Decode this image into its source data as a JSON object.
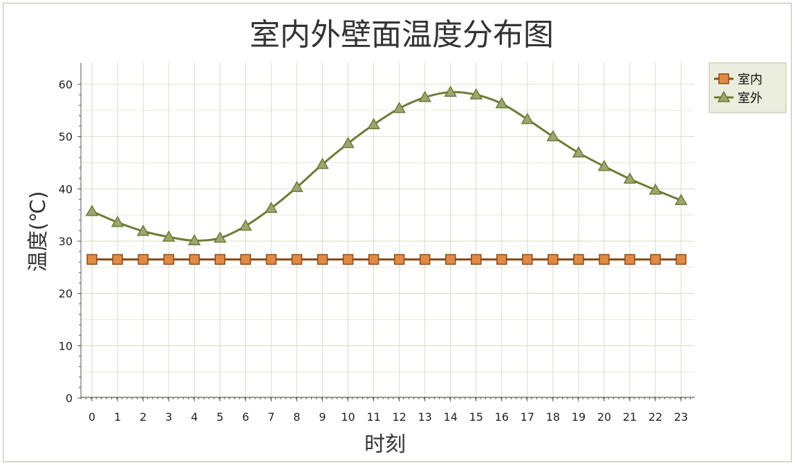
{
  "chart_data": {
    "type": "line",
    "title": "室内外壁面温度分布图",
    "xlabel": "时刻",
    "ylabel": "温度(℃)",
    "categories": [
      "0",
      "1",
      "2",
      "3",
      "4",
      "5",
      "6",
      "7",
      "8",
      "9",
      "10",
      "11",
      "12",
      "13",
      "14",
      "15",
      "16",
      "17",
      "18",
      "19",
      "20",
      "21",
      "22",
      "23"
    ],
    "ylim": [
      0,
      60
    ],
    "yticks": [
      0,
      10,
      20,
      30,
      40,
      50,
      60
    ],
    "grid": true,
    "legend_position": "top-right",
    "series": [
      {
        "name": "室内",
        "marker": "square",
        "color": "#8b4a13",
        "fill": "#e08a45",
        "values": [
          26.5,
          26.5,
          26.5,
          26.5,
          26.5,
          26.5,
          26.5,
          26.5,
          26.5,
          26.5,
          26.5,
          26.5,
          26.5,
          26.5,
          26.5,
          26.5,
          26.5,
          26.5,
          26.5,
          26.5,
          26.5,
          26.5,
          26.5,
          26.5
        ]
      },
      {
        "name": "室外",
        "marker": "triangle",
        "color": "#6b7a35",
        "fill": "#9aa870",
        "values": [
          35.7,
          33.6,
          31.9,
          30.8,
          30.1,
          30.6,
          32.9,
          36.3,
          40.3,
          44.7,
          48.7,
          52.3,
          55.4,
          57.5,
          58.5,
          58.0,
          56.3,
          53.3,
          50.0,
          46.9,
          44.3,
          41.9,
          39.8,
          37.8
        ]
      }
    ]
  }
}
